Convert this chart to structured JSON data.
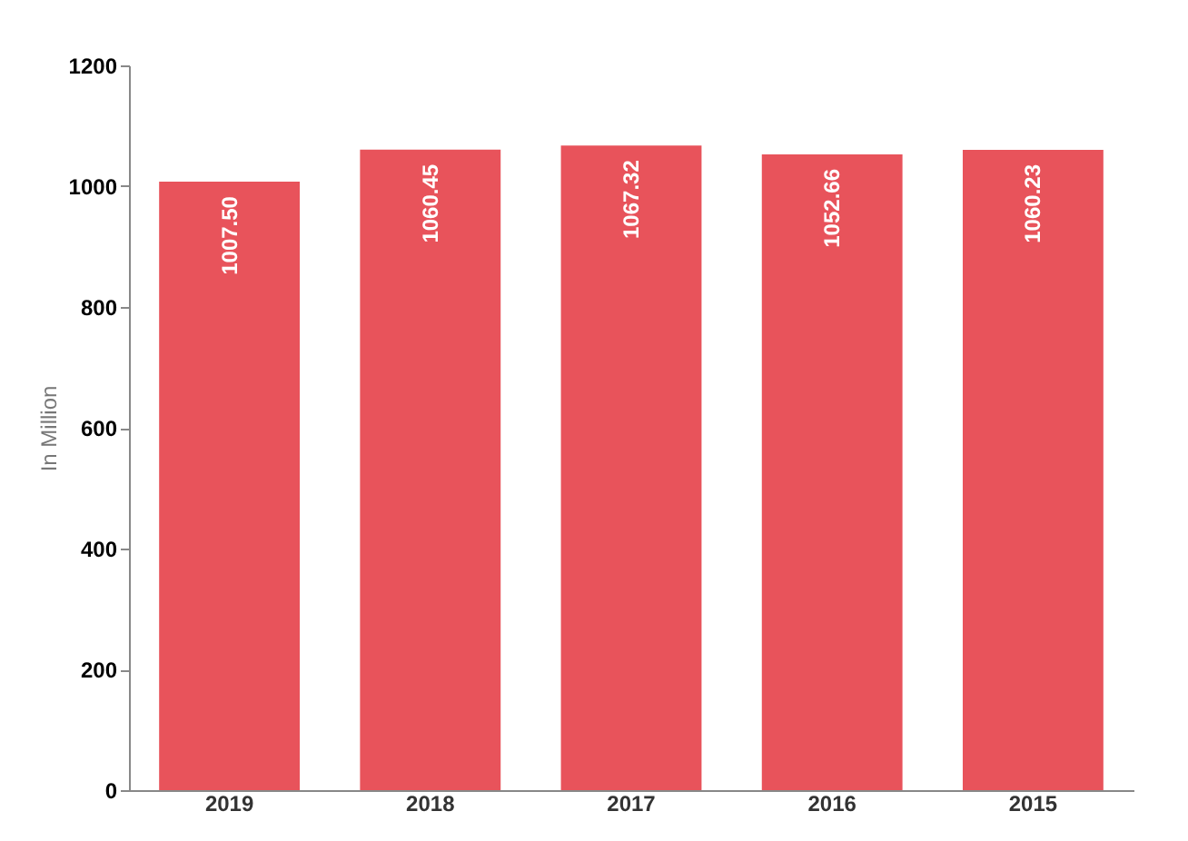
{
  "chart_data": {
    "type": "bar",
    "ylabel": "In Million",
    "categories": [
      "2019",
      "2018",
      "2017",
      "2016",
      "2015"
    ],
    "values": [
      1007.5,
      1060.45,
      1067.32,
      1052.66,
      1060.23
    ],
    "value_labels": [
      "1007.50",
      "1060.45",
      "1067.32",
      "1052.66",
      "1060.23"
    ],
    "color": "#e8535b",
    "ylim": [
      0,
      1200
    ],
    "yticks": [
      0,
      200,
      400,
      600,
      800,
      1000,
      1200
    ],
    "grid": false
  }
}
